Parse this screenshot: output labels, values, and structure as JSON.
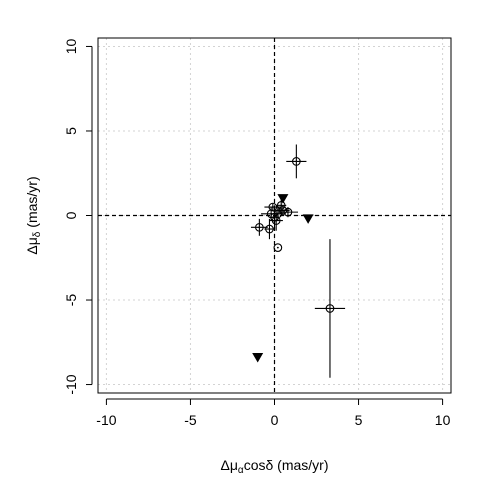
{
  "chart_data": {
    "type": "scatter",
    "title": "",
    "xlabel": "Δμαcosδ (mas/yr)",
    "ylabel": "Δμδ (mas/yr)",
    "xlabel_parts": {
      "main": "Δμ",
      "sub": "α",
      "rest": "cosδ (mas/yr)"
    },
    "ylabel_parts": {
      "main": "Δμ",
      "sub": "δ",
      "rest": " (mas/yr)"
    },
    "xlim": [
      -10.5,
      10.5
    ],
    "ylim": [
      -10.5,
      10.5
    ],
    "xticks": [
      -10,
      -5,
      0,
      5,
      10
    ],
    "yticks": [
      -10,
      -5,
      0,
      5,
      10
    ],
    "xtick_labels": [
      "-10",
      "-5",
      "0",
      "5",
      "10"
    ],
    "ytick_labels": [
      "-10",
      "-5",
      "0",
      "5",
      "10"
    ],
    "grid": true,
    "reference_lines": {
      "x": 0,
      "y": 0,
      "style": "dashed"
    },
    "colors": {
      "marks": "#000000",
      "grid": "#d3d3d3",
      "background": "#ffffff"
    },
    "series": [
      {
        "marker": "circle-dot",
        "points": [
          {
            "x": 1.3,
            "y": 3.2,
            "xerr": 0.6,
            "yerr": 1.0
          },
          {
            "x": 3.3,
            "y": -5.5,
            "xerr": 0.9,
            "yerr": 4.1
          },
          {
            "x": 0.2,
            "y": -1.9,
            "xerr": 0,
            "yerr": 0
          },
          {
            "x": -0.9,
            "y": -0.7,
            "xerr": 0.5,
            "yerr": 0.5
          },
          {
            "x": -0.3,
            "y": -0.8,
            "xerr": 0.3,
            "yerr": 0.6
          },
          {
            "x": 0.8,
            "y": 0.2,
            "xerr": 0.6,
            "yerr": 0.3
          },
          {
            "x": 0.4,
            "y": 0.6,
            "xerr": 0.3,
            "yerr": 0.5
          },
          {
            "x": 0.1,
            "y": -0.3,
            "xerr": 0.4,
            "yerr": 0.6
          },
          {
            "x": -0.2,
            "y": 0.1,
            "xerr": 0.6,
            "yerr": 0.4
          },
          {
            "x": 0.0,
            "y": -0.1,
            "xerr": 0.2,
            "yerr": 0.7
          },
          {
            "x": 0.5,
            "y": 0.3,
            "xerr": 0.4,
            "yerr": 0.3
          },
          {
            "x": -0.1,
            "y": 0.5,
            "xerr": 0.5,
            "yerr": 0.2
          },
          {
            "x": 0.2,
            "y": 0.1,
            "xerr": 0.3,
            "yerr": 0.4
          }
        ]
      },
      {
        "marker": "triangle-down",
        "points": [
          {
            "x": 0.5,
            "y": 1.0
          },
          {
            "x": 2.0,
            "y": -0.2
          },
          {
            "x": -1.0,
            "y": -8.4
          }
        ]
      }
    ]
  }
}
